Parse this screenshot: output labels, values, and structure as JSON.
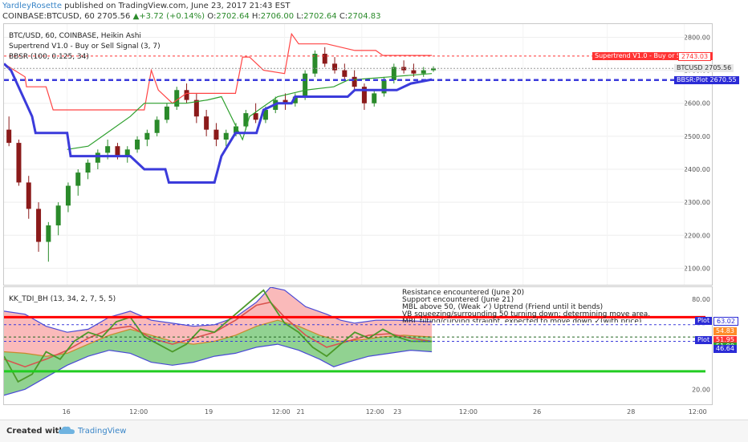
{
  "header": {
    "author": "YardleyRosette",
    "published_text": " published on TradingView.com, June 23, 2017 21:43 EST",
    "symbol_line": "COINBASE:BTCUSD, 60",
    "last_price": "2705.56",
    "change_arrow": "▲",
    "change": "+3.72 (+0.14%)",
    "open_label": "O:",
    "open": "2702.64",
    "high_label": "H:",
    "high": "2706.00",
    "low_label": "L:",
    "low": "2702.64",
    "close_label": "C:",
    "close": "2704.83"
  },
  "main_pane": {
    "title": "BTC/USD, 60, COINBASE, Heikin Ashi",
    "study1": "Supertrend V1.0 - Buy or Sell Signal (3, 7)",
    "study2": "BBSR (100, 0.125, 34)",
    "y_ticks": [
      "2800.00",
      "2700.00",
      "2600.00",
      "2500.00",
      "2400.00",
      "2300.00",
      "2200.00",
      "2100.00"
    ],
    "tag_supertrend_label": "Supertrend V1.0 - Buy or Sell Signal",
    "tag_supertrend_value": "2743.03",
    "tag_btc_label": "BTCUSD",
    "tag_btc_value": "2705.56",
    "tag_bbsr_label": "BBSR:Plot",
    "tag_bbsr_value": "2670.55"
  },
  "ind_pane": {
    "title": "KK_TDI_BH (13, 34, 2, 7, 5, 5)",
    "notes": [
      "Resistance encountered (June 20)",
      "Support encountered (June 21)",
      "MBL above 50, (Weak ✓) Uptrend  (Friend until it bends)",
      "VB squeezing/surrounding 50 turning down; determining move area.",
      "MBL tilting/curving straight, expected to move down ✓(with price)"
    ],
    "y_ticks": [
      "80.00",
      "20.00"
    ],
    "plot_label": "Plot",
    "tags": {
      "v1": "63.02",
      "v2": "54.83",
      "v3": "51.95",
      "v4": "51.90",
      "v5": "46.64"
    }
  },
  "x_axis": {
    "ticks": [
      "16",
      "12:00",
      "19",
      "12:00",
      "21",
      "12:00",
      "23",
      "12:00",
      "26",
      "28",
      "12:00"
    ]
  },
  "footer": {
    "created_with": "Created with",
    "brand": "TradingView"
  },
  "colors": {
    "up": "#2a8a2a",
    "down": "#8b1a1a",
    "supertrend": "#ff4444",
    "bbsr": "#3b3bdb",
    "band_upper_fill": "#f8a3a3",
    "band_lower_fill": "#6cc36c",
    "resistance": "#ff0000",
    "support": "#22cc22",
    "rsi": "#4c9a2a",
    "signal": "#d9534f"
  },
  "chart_data": [
    {
      "type": "candlestick",
      "title": "BTC/USD, 60, COINBASE, Heikin Ashi",
      "ylim": [
        2050,
        2840
      ],
      "xlim": [
        0,
        100
      ],
      "candles_ohlc": [
        [
          2520,
          2560,
          2470,
          2480
        ],
        [
          2480,
          2490,
          2350,
          2360
        ],
        [
          2360,
          2380,
          2250,
          2280
        ],
        [
          2280,
          2300,
          2150,
          2180
        ],
        [
          2180,
          2240,
          2120,
          2230
        ],
        [
          2230,
          2300,
          2200,
          2290
        ],
        [
          2290,
          2360,
          2270,
          2350
        ],
        [
          2350,
          2400,
          2320,
          2390
        ],
        [
          2390,
          2430,
          2370,
          2420
        ],
        [
          2420,
          2460,
          2400,
          2450
        ],
        [
          2450,
          2490,
          2430,
          2470
        ],
        [
          2470,
          2480,
          2430,
          2440
        ],
        [
          2440,
          2470,
          2420,
          2460
        ],
        [
          2460,
          2500,
          2450,
          2490
        ],
        [
          2490,
          2520,
          2470,
          2510
        ],
        [
          2510,
          2560,
          2500,
          2550
        ],
        [
          2550,
          2600,
          2540,
          2590
        ],
        [
          2590,
          2650,
          2580,
          2640
        ],
        [
          2640,
          2660,
          2600,
          2610
        ],
        [
          2610,
          2630,
          2540,
          2560
        ],
        [
          2560,
          2580,
          2500,
          2520
        ],
        [
          2520,
          2540,
          2470,
          2490
        ],
        [
          2490,
          2520,
          2470,
          2510
        ],
        [
          2510,
          2540,
          2500,
          2530
        ],
        [
          2530,
          2580,
          2520,
          2570
        ],
        [
          2570,
          2600,
          2540,
          2550
        ],
        [
          2550,
          2590,
          2540,
          2580
        ],
        [
          2580,
          2620,
          2570,
          2610
        ],
        [
          2610,
          2630,
          2580,
          2600
        ],
        [
          2600,
          2630,
          2590,
          2620
        ],
        [
          2620,
          2700,
          2610,
          2690
        ],
        [
          2690,
          2760,
          2680,
          2750
        ],
        [
          2750,
          2770,
          2710,
          2720
        ],
        [
          2720,
          2740,
          2690,
          2700
        ],
        [
          2700,
          2720,
          2670,
          2680
        ],
        [
          2680,
          2700,
          2640,
          2650
        ],
        [
          2650,
          2660,
          2580,
          2600
        ],
        [
          2600,
          2640,
          2590,
          2630
        ],
        [
          2630,
          2680,
          2620,
          2670
        ],
        [
          2670,
          2720,
          2660,
          2710
        ],
        [
          2710,
          2730,
          2690,
          2700
        ],
        [
          2700,
          2720,
          2680,
          2690
        ],
        [
          2690,
          2710,
          2680,
          2700
        ],
        [
          2700,
          2712,
          2695,
          2705
        ]
      ],
      "candle_x_span": [
        0,
        86
      ],
      "supertrend": [
        [
          0,
          2720
        ],
        [
          3,
          2680
        ],
        [
          3.2,
          2650
        ],
        [
          6,
          2650
        ],
        [
          7,
          2580
        ],
        [
          20,
          2580
        ],
        [
          21,
          2700
        ],
        [
          22,
          2640
        ],
        [
          24,
          2600
        ],
        [
          26,
          2630
        ],
        [
          33,
          2630
        ],
        [
          34,
          2740
        ],
        [
          35,
          2740
        ],
        [
          37,
          2700
        ],
        [
          40,
          2690
        ],
        [
          41,
          2810
        ],
        [
          42,
          2780
        ],
        [
          46,
          2780
        ],
        [
          50,
          2760
        ],
        [
          53,
          2760
        ],
        [
          54,
          2745
        ],
        [
          61,
          2745
        ]
      ],
      "supertrend_lower": [
        [
          9,
          2460
        ],
        [
          12,
          2470
        ],
        [
          14,
          2500
        ],
        [
          18,
          2560
        ],
        [
          20,
          2600
        ],
        [
          26,
          2600
        ],
        [
          29,
          2610
        ],
        [
          31,
          2620
        ],
        [
          34,
          2490
        ],
        [
          35,
          2560
        ],
        [
          37,
          2590
        ],
        [
          39,
          2620
        ],
        [
          43,
          2640
        ],
        [
          47,
          2650
        ],
        [
          49,
          2670
        ],
        [
          52,
          2675
        ],
        [
          55,
          2680
        ],
        [
          61,
          2690
        ]
      ],
      "bbsr": [
        [
          0,
          2720
        ],
        [
          1,
          2700
        ],
        [
          4,
          2560
        ],
        [
          4.5,
          2510
        ],
        [
          9,
          2510
        ],
        [
          9.5,
          2440
        ],
        [
          18,
          2440
        ],
        [
          20,
          2400
        ],
        [
          23,
          2400
        ],
        [
          23.5,
          2360
        ],
        [
          30,
          2360
        ],
        [
          31,
          2440
        ],
        [
          33,
          2510
        ],
        [
          36,
          2510
        ],
        [
          37,
          2580
        ],
        [
          39,
          2600
        ],
        [
          41,
          2600
        ],
        [
          41.5,
          2620
        ],
        [
          49,
          2620
        ],
        [
          50,
          2640
        ],
        [
          56,
          2640
        ],
        [
          58,
          2660
        ],
        [
          61,
          2672
        ]
      ],
      "hlines": [
        {
          "name": "Supertrend V1.0 - Buy or Sell Signal",
          "y": 2743.03
        },
        {
          "name": "BTCUSD",
          "y": 2705.56
        },
        {
          "name": "BBSR:Plot",
          "y": 2670.55
        }
      ]
    },
    {
      "type": "line",
      "title": "KK_TDI_BH (13, 34, 2, 7, 5, 5)",
      "ylim": [
        10,
        88
      ],
      "xlim": [
        0,
        100
      ],
      "upper_band": [
        [
          0,
          72
        ],
        [
          3,
          70
        ],
        [
          6,
          62
        ],
        [
          9,
          58
        ],
        [
          12,
          60
        ],
        [
          15,
          68
        ],
        [
          18,
          72
        ],
        [
          21,
          66
        ],
        [
          24,
          64
        ],
        [
          27,
          62
        ],
        [
          30,
          63
        ],
        [
          33,
          68
        ],
        [
          36,
          78
        ],
        [
          38,
          88
        ],
        [
          40,
          86
        ],
        [
          43,
          75
        ],
        [
          46,
          70
        ],
        [
          48,
          66
        ],
        [
          50,
          64
        ],
        [
          53,
          66
        ],
        [
          56,
          66
        ],
        [
          61,
          65
        ]
      ],
      "lower_band": [
        [
          0,
          16
        ],
        [
          3,
          20
        ],
        [
          6,
          28
        ],
        [
          9,
          36
        ],
        [
          12,
          42
        ],
        [
          15,
          46
        ],
        [
          18,
          44
        ],
        [
          21,
          38
        ],
        [
          24,
          36
        ],
        [
          27,
          38
        ],
        [
          30,
          42
        ],
        [
          33,
          44
        ],
        [
          36,
          48
        ],
        [
          39,
          50
        ],
        [
          42,
          46
        ],
        [
          45,
          40
        ],
        [
          47,
          35
        ],
        [
          49,
          38
        ],
        [
          52,
          42
        ],
        [
          55,
          44
        ],
        [
          58,
          46
        ],
        [
          61,
          45
        ]
      ],
      "mid_line": [
        [
          0,
          45
        ],
        [
          3,
          44
        ],
        [
          6,
          42
        ],
        [
          9,
          44
        ],
        [
          12,
          50
        ],
        [
          15,
          56
        ],
        [
          18,
          60
        ],
        [
          21,
          56
        ],
        [
          24,
          52
        ],
        [
          27,
          50
        ],
        [
          30,
          52
        ],
        [
          33,
          56
        ],
        [
          36,
          62
        ],
        [
          39,
          66
        ],
        [
          42,
          62
        ],
        [
          45,
          56
        ],
        [
          48,
          52
        ],
        [
          51,
          53
        ],
        [
          54,
          55
        ],
        [
          57,
          56
        ],
        [
          61,
          54.83
        ]
      ],
      "rsi": [
        [
          0,
          42
        ],
        [
          2,
          25
        ],
        [
          4,
          30
        ],
        [
          6,
          45
        ],
        [
          8,
          40
        ],
        [
          10,
          52
        ],
        [
          12,
          58
        ],
        [
          14,
          55
        ],
        [
          16,
          65
        ],
        [
          18,
          68
        ],
        [
          20,
          55
        ],
        [
          22,
          50
        ],
        [
          24,
          45
        ],
        [
          26,
          50
        ],
        [
          28,
          60
        ],
        [
          30,
          58
        ],
        [
          32,
          66
        ],
        [
          34,
          74
        ],
        [
          36,
          82
        ],
        [
          37,
          86
        ],
        [
          38,
          78
        ],
        [
          40,
          64
        ],
        [
          42,
          58
        ],
        [
          44,
          48
        ],
        [
          46,
          42
        ],
        [
          48,
          50
        ],
        [
          50,
          58
        ],
        [
          52,
          54
        ],
        [
          54,
          60
        ],
        [
          56,
          55
        ],
        [
          58,
          52
        ],
        [
          61,
          51.9
        ]
      ],
      "signal": [
        [
          0,
          40
        ],
        [
          3,
          35
        ],
        [
          6,
          40
        ],
        [
          9,
          46
        ],
        [
          12,
          54
        ],
        [
          15,
          60
        ],
        [
          18,
          62
        ],
        [
          21,
          54
        ],
        [
          24,
          50
        ],
        [
          27,
          54
        ],
        [
          30,
          58
        ],
        [
          33,
          66
        ],
        [
          36,
          76
        ],
        [
          38,
          78
        ],
        [
          40,
          68
        ],
        [
          43,
          56
        ],
        [
          46,
          48
        ],
        [
          49,
          52
        ],
        [
          52,
          56
        ],
        [
          55,
          57
        ],
        [
          58,
          54
        ],
        [
          61,
          51.95
        ]
      ],
      "hlines": [
        {
          "y": 68,
          "color": "#ff0000"
        },
        {
          "y": 63.02,
          "color": "#3b3bdb",
          "dashed": true
        },
        {
          "y": 54.83,
          "color": "#226622",
          "dashed": true
        },
        {
          "y": 51.95,
          "color": "#3b3bdb",
          "dashed": true
        },
        {
          "y": 32,
          "color": "#22cc22"
        }
      ]
    }
  ]
}
